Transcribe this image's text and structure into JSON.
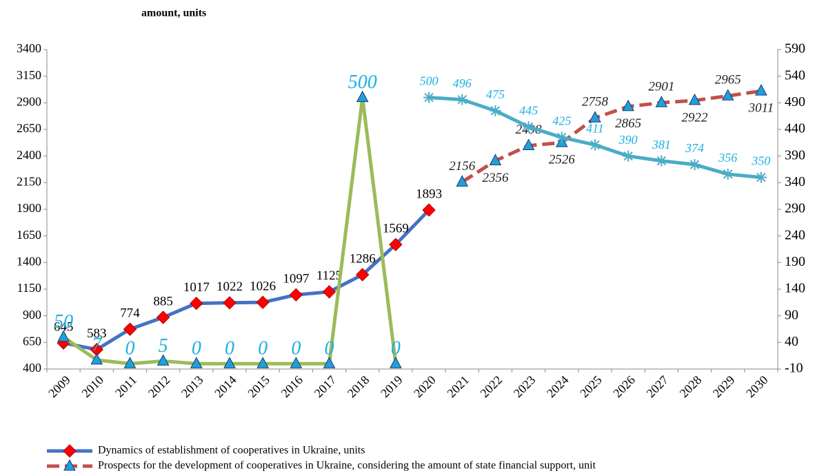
{
  "chart_data": {
    "type": "line",
    "title": "amount, units",
    "categories": [
      "2009",
      "2010",
      "2011",
      "2012",
      "2013",
      "2014",
      "2015",
      "2016",
      "2017",
      "2018",
      "2019",
      "2020",
      "2021",
      "2022",
      "2023",
      "2024",
      "2025",
      "2026",
      "2027",
      "2028",
      "2029",
      "2030"
    ],
    "ylim": [
      400,
      3400
    ],
    "yticks": [
      400,
      650,
      900,
      1150,
      1400,
      1650,
      1900,
      2150,
      2400,
      2650,
      2900,
      3150,
      3400
    ],
    "y2lim": [
      -10,
      590
    ],
    "y2ticks": [
      -10,
      40,
      90,
      140,
      190,
      240,
      290,
      340,
      390,
      440,
      490,
      540,
      590
    ],
    "legend": "bottom",
    "series": [
      {
        "name": "Dynamics of establishment of cooperatives in Ukraine, units",
        "color": "#4472c4",
        "marker": "diamond",
        "marker_color": "#ff0000",
        "values": [
          645,
          583,
          774,
          885,
          1017,
          1022,
          1026,
          1097,
          1125,
          1286,
          1569,
          1893,
          null,
          null,
          null,
          null,
          null,
          null,
          null,
          null,
          null,
          null
        ]
      },
      {
        "name": "Prospects for the development of cooperatives in Ukraine, considering the amount of state financial support, unit",
        "color": "#c0504d",
        "dash": true,
        "marker": "triangle",
        "marker_color": "#1fa0dc",
        "values": [
          null,
          null,
          null,
          null,
          null,
          null,
          null,
          null,
          null,
          null,
          null,
          null,
          2156,
          2356,
          2498,
          2526,
          2758,
          2865,
          2901,
          2922,
          2965,
          3011
        ]
      },
      {
        "color": "#9bbb59",
        "axis": "y2",
        "marker": "triangle",
        "marker_color": "#1fa0dc",
        "values": [
          50,
          7,
          0,
          5,
          0,
          0,
          0,
          0,
          0,
          500,
          0,
          null,
          null,
          null,
          null,
          null,
          null,
          null,
          null,
          null,
          null,
          null
        ]
      },
      {
        "color": "#4bacc6",
        "axis": "y2",
        "marker": "asterisk",
        "marker_color": "#4bacc6",
        "values": [
          null,
          null,
          null,
          null,
          null,
          null,
          null,
          null,
          null,
          null,
          null,
          500,
          496,
          475,
          445,
          425,
          411,
          390,
          381,
          374,
          356,
          350
        ]
      }
    ]
  }
}
